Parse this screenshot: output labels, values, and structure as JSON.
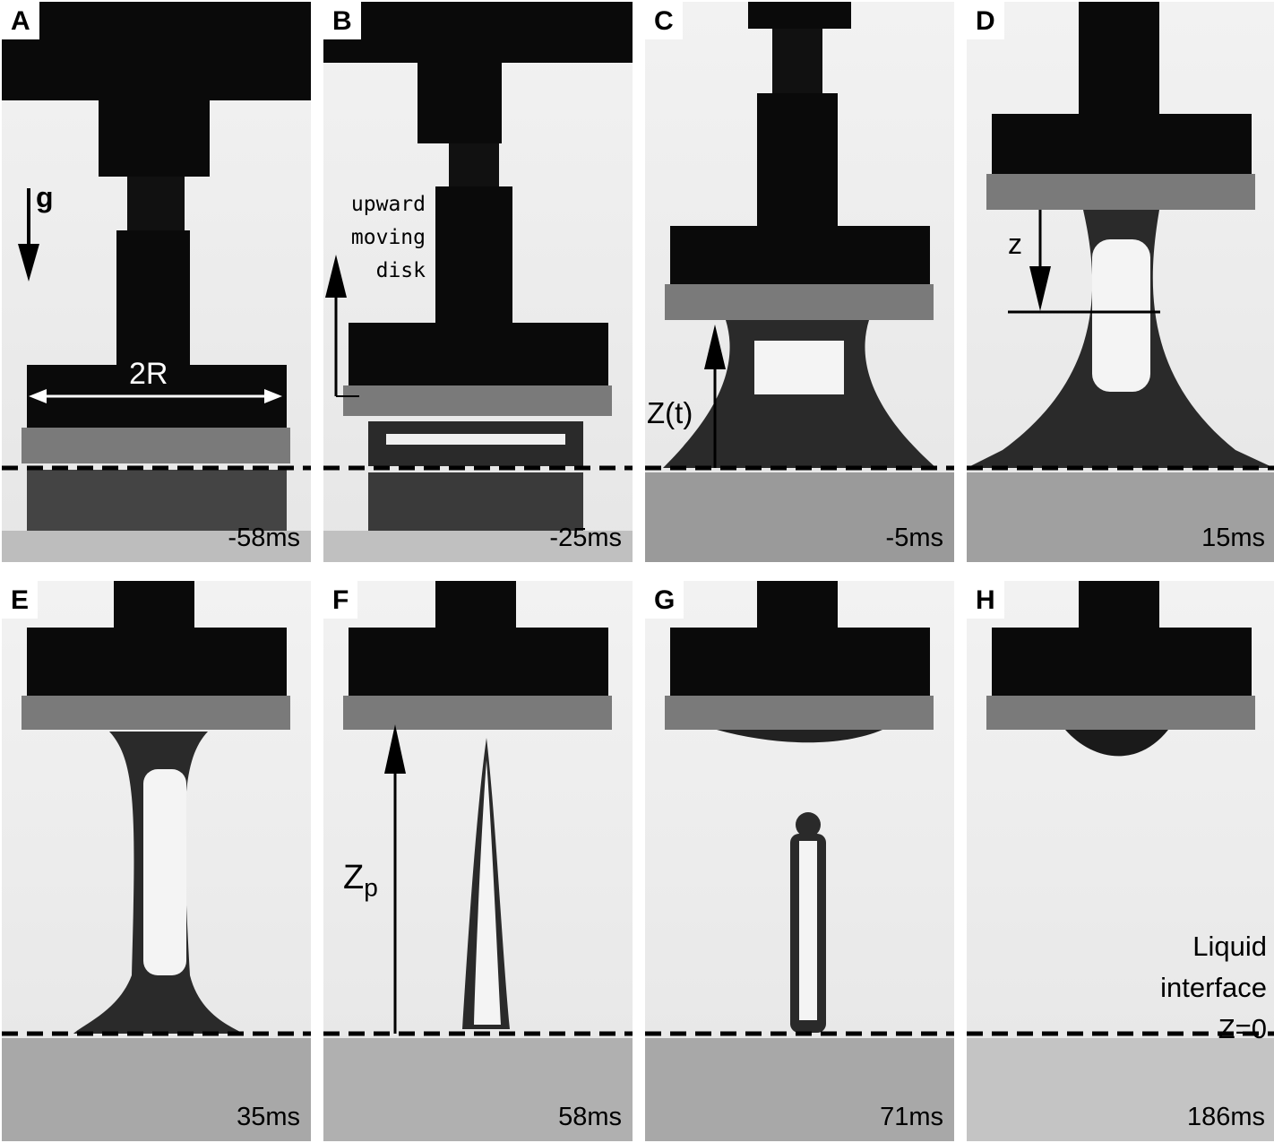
{
  "panels": [
    {
      "letter": "A",
      "time": "-58ms"
    },
    {
      "letter": "B",
      "time": "-25ms"
    },
    {
      "letter": "C",
      "time": "-5ms"
    },
    {
      "letter": "D",
      "time": "15ms"
    },
    {
      "letter": "E",
      "time": "35ms"
    },
    {
      "letter": "F",
      "time": "58ms"
    },
    {
      "letter": "G",
      "time": "71ms"
    },
    {
      "letter": "H",
      "time": "186ms"
    }
  ],
  "annotations": {
    "gravity": "g",
    "diameter": "2R",
    "disk_motion": [
      "upward",
      "moving",
      "disk"
    ],
    "height": "Z(t)",
    "depth": "z",
    "pinch_height_base": "Z",
    "pinch_height_sub": "p",
    "interface": [
      "Liquid",
      "interface",
      "Z=0"
    ]
  }
}
